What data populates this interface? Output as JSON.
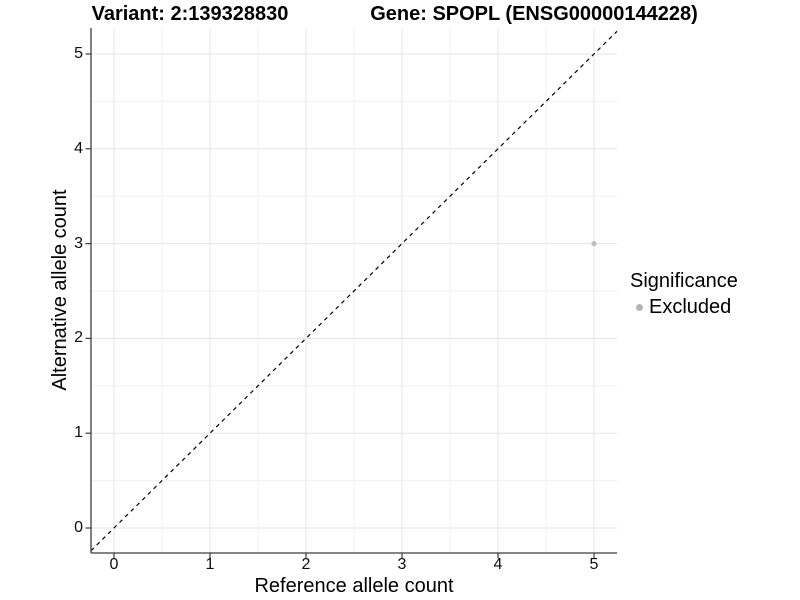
{
  "titles": {
    "left": "Variant: 2:139328830",
    "right": "Gene: SPOPL (ENSG00000144228)"
  },
  "chart_data": {
    "type": "scatter",
    "title_left": "Variant: 2:139328830",
    "title_right": "Gene: SPOPL (ENSG00000144228)",
    "xlabel": "Reference allele count",
    "ylabel": "Alternative allele count",
    "xlim": [
      -0.25,
      5.25
    ],
    "ylim": [
      -0.25,
      5.25
    ],
    "x_ticks": [
      0,
      1,
      2,
      3,
      4,
      5
    ],
    "y_ticks": [
      0,
      1,
      2,
      3,
      4,
      5
    ],
    "grid": "major and minor gridlines on white background",
    "series": [
      {
        "name": "Excluded",
        "color": "#bdbdbd",
        "points": [
          {
            "x": 5,
            "y": 3
          }
        ]
      }
    ],
    "reference_line": {
      "kind": "identity y=x",
      "style": "dashed",
      "color": "#000000"
    },
    "legend": {
      "title": "Significance",
      "position": "right",
      "items": [
        {
          "label": "Excluded",
          "color": "#b5b5b5"
        }
      ]
    }
  },
  "colors": {
    "background": "#ffffff",
    "axis_line": "#3c3c3c",
    "major_grid": "#e5e5e5",
    "minor_grid": "#f0f0f0",
    "tick_mark": "#3c3c3c",
    "tick_text": "#0d0d0d",
    "point": "#bdbdbd"
  }
}
